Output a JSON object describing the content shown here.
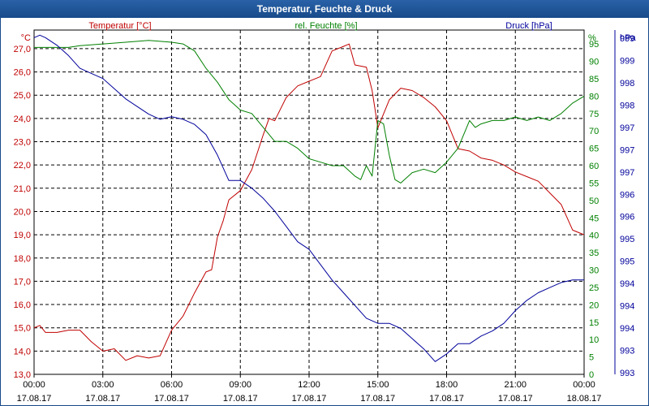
{
  "window": {
    "title": "Temperatur, Feuchte & Druck"
  },
  "colors": {
    "temperature": "#c00000",
    "humidity": "#008000",
    "pressure": "#00009b",
    "grid": "#000000",
    "axis_text": "#000000",
    "titlebar": "#1f56a0"
  },
  "chart_data": {
    "type": "line",
    "title": "Temperatur, Feuchte & Druck",
    "grid": true,
    "x": {
      "ticks": [
        {
          "time": "00:00",
          "date": "17.08.17"
        },
        {
          "time": "03:00",
          "date": "17.08.17"
        },
        {
          "time": "06:00",
          "date": "17.08.17"
        },
        {
          "time": "09:00",
          "date": "17.08.17"
        },
        {
          "time": "12:00",
          "date": "17.08.17"
        },
        {
          "time": "15:00",
          "date": "17.08.17"
        },
        {
          "time": "18:00",
          "date": "17.08.17"
        },
        {
          "time": "21:00",
          "date": "17.08.17"
        },
        {
          "time": "00:00",
          "date": "18.08.17"
        }
      ],
      "range_hours": [
        0,
        24
      ]
    },
    "axes": {
      "temperature": {
        "label": "Temperatur [°C]",
        "unit": "°C",
        "range": [
          13,
          27.8
        ],
        "ticks": [
          "13,0",
          "14,0",
          "15,0",
          "16,0",
          "17,0",
          "18,0",
          "19,0",
          "20,0",
          "21,0",
          "22,0",
          "23,0",
          "24,0",
          "25,0",
          "26,0",
          "27,0"
        ]
      },
      "humidity": {
        "label": "rel. Feuchte [%]",
        "unit": "%",
        "range": [
          0,
          99
        ],
        "ticks": [
          "0",
          "5",
          "10",
          "15",
          "20",
          "25",
          "30",
          "35",
          "40",
          "45",
          "50",
          "55",
          "60",
          "65",
          "70",
          "75",
          "80",
          "85",
          "90",
          "95"
        ]
      },
      "pressure": {
        "label": "Druck [hPa]",
        "unit": "hPa",
        "range": [
          992.75,
          999.5
        ],
        "ticks": [
          "993",
          "993",
          "994",
          "994",
          "994",
          "995",
          "995",
          "996",
          "996",
          "997",
          "997",
          "997",
          "998",
          "998",
          "999",
          "999"
        ]
      }
    },
    "series": [
      {
        "name": "Temperatur [°C]",
        "axis": "temperature",
        "x_hours": [
          0,
          0.25,
          0.5,
          1,
          1.5,
          2,
          2.5,
          3,
          3.5,
          4,
          4.5,
          5,
          5.5,
          6,
          6.5,
          7,
          7.5,
          7.75,
          8,
          8.25,
          8.5,
          9,
          9.5,
          10,
          10.25,
          10.5,
          11,
          11.5,
          12,
          12.5,
          13,
          13.5,
          13.75,
          14,
          14.5,
          14.75,
          15,
          15.5,
          16,
          16.5,
          17,
          17.5,
          18,
          18.5,
          19,
          19.5,
          20,
          20.5,
          21,
          21.5,
          22,
          22.5,
          23,
          23.5,
          24
        ],
        "values": [
          15,
          15.1,
          14.8,
          14.8,
          14.9,
          14.9,
          14.4,
          14,
          14.1,
          13.6,
          13.8,
          13.7,
          13.8,
          14.9,
          15.5,
          16.5,
          17.4,
          17.5,
          18.9,
          19.6,
          20.5,
          20.9,
          21.8,
          23.3,
          24,
          23.9,
          24.9,
          25.4,
          25.6,
          25.8,
          26.9,
          27.1,
          27.2,
          26.3,
          26.2,
          25.2,
          23.6,
          24.8,
          25.3,
          25.2,
          24.9,
          24.5,
          23.9,
          22.7,
          22.6,
          22.3,
          22.2,
          22,
          21.7,
          21.5,
          21.3,
          20.8,
          20.3,
          19.2,
          19
        ]
      },
      {
        "name": "rel. Feuchte [%]",
        "axis": "humidity",
        "x_hours": [
          0,
          0.5,
          1,
          1.5,
          2,
          3,
          4,
          5,
          6,
          6.5,
          7,
          7.5,
          8,
          8.5,
          9,
          9.5,
          10,
          10.5,
          11,
          11.5,
          12,
          12.5,
          13,
          13.5,
          14,
          14.25,
          14.5,
          14.75,
          15,
          15.25,
          15.5,
          15.75,
          16,
          16.5,
          17,
          17.5,
          18,
          18.5,
          19,
          19.25,
          19.5,
          20,
          20.5,
          21,
          21.5,
          22,
          22.5,
          23,
          23.5,
          24
        ],
        "values": [
          94,
          94,
          94,
          94,
          94.5,
          95,
          95.5,
          96,
          95.5,
          95,
          93,
          88,
          84,
          79,
          76,
          75,
          71,
          67,
          67,
          65,
          62,
          61,
          60,
          60,
          57,
          56,
          60,
          57,
          73,
          72,
          63,
          56,
          55,
          58,
          59,
          58,
          61,
          65,
          73,
          71,
          72,
          73,
          73,
          74,
          73,
          74,
          73,
          75,
          78,
          80
        ]
      },
      {
        "name": "Druck [hPa]",
        "axis": "pressure",
        "x_hours": [
          0,
          0.25,
          0.5,
          1,
          1.5,
          2,
          2.5,
          3,
          3.5,
          4,
          4.5,
          5,
          5.5,
          6,
          6.5,
          7,
          7.5,
          8,
          8.5,
          9,
          9.5,
          10,
          10.5,
          11,
          11.5,
          12,
          12.5,
          13,
          13.5,
          14,
          14.5,
          15,
          15.5,
          16,
          16.5,
          17,
          17.5,
          18,
          18.5,
          19,
          19.5,
          20,
          20.5,
          21,
          21.5,
          22,
          22.5,
          23,
          23.5,
          24
        ],
        "values": [
          999.35,
          999.4,
          999.35,
          999.2,
          999,
          998.75,
          998.65,
          998.55,
          998.35,
          998.15,
          998,
          997.85,
          997.75,
          997.8,
          997.75,
          997.65,
          997.45,
          997.05,
          996.55,
          996.55,
          996.4,
          996.2,
          995.95,
          995.65,
          995.35,
          995.2,
          994.9,
          994.6,
          994.35,
          994.1,
          993.85,
          993.75,
          993.75,
          993.65,
          993.45,
          993.25,
          993,
          993.15,
          993.35,
          993.35,
          993.5,
          993.6,
          993.75,
          994,
          994.2,
          994.35,
          994.45,
          994.55,
          994.6,
          994.6
        ]
      }
    ]
  }
}
